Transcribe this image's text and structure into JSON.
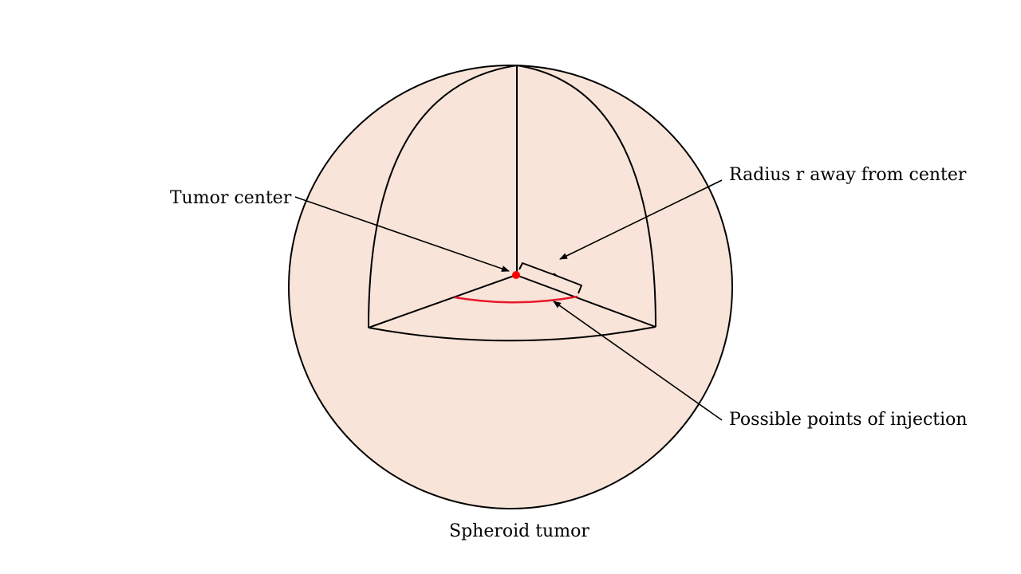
{
  "labels": {
    "tumor_center": "Tumor center",
    "radius": "Radius r away from center",
    "injection_points": "Possible points of injection",
    "caption": "Spheroid tumor"
  },
  "colors": {
    "sphere_fill": "#f8e4d8",
    "outline": "#000000",
    "center_dot": "#ff0000",
    "injection_arc": "#e8192c"
  }
}
